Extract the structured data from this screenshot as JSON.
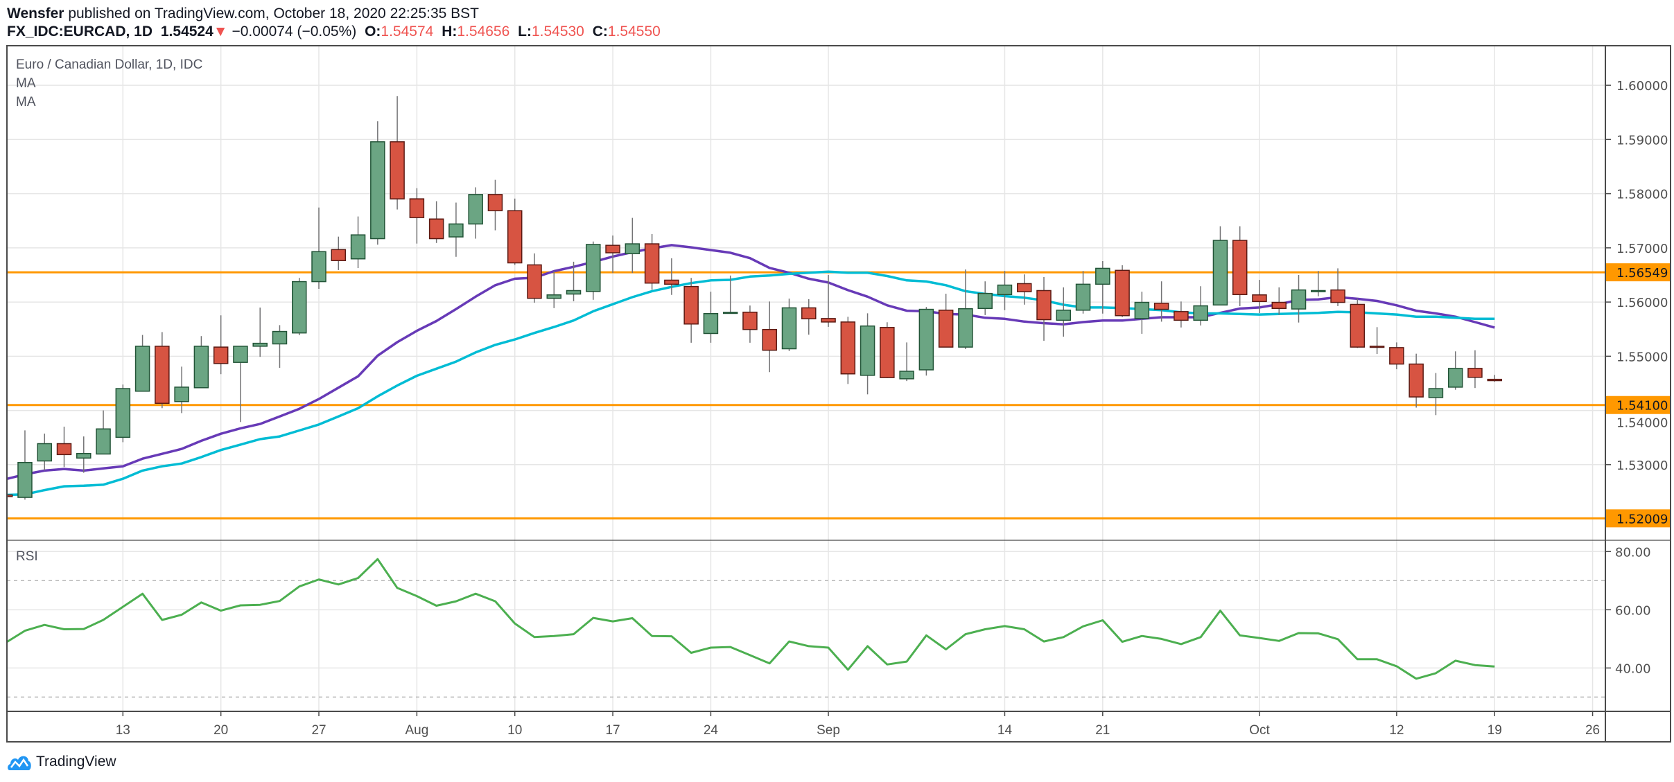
{
  "header": {
    "author": "Wensfer",
    "published": "published on TradingView.com, October 18, 2020 22:25:35 BST",
    "symbol": "FX_IDC:EURCAD, 1D",
    "last": "1.54524",
    "direction_icon": "triangle-down-icon",
    "change": "−0.00074 (−0.05%)",
    "o_label": "O:",
    "o": "1.54574",
    "h_label": "H:",
    "h": "1.54656",
    "l_label": "L:",
    "l": "1.54530",
    "c_label": "C:",
    "c": "1.54550"
  },
  "legend": {
    "title": "Euro / Canadian Dollar, 1D, IDC",
    "ma1": "MA",
    "ma2": "MA",
    "rsi": "RSI"
  },
  "branding": {
    "logo_text": "TradingView",
    "logo_icon": "tradingview-cloud-icon"
  },
  "colors": {
    "up_body": "#6ba583",
    "up_border": "#225437",
    "down_body": "#d75442",
    "down_border": "#5b1a13",
    "wick": "#737375",
    "level_line": "#ff9800",
    "ma1": "#673ab7",
    "ma2": "#00bcd4",
    "rsi": "#4caf50",
    "header_value": "#ef5350"
  },
  "chart_data": {
    "type": "candlestick",
    "title": "Euro / Canadian Dollar, 1D, IDC",
    "ylim": [
      1.5163,
      1.6073
    ],
    "grid": true,
    "price_ticks": [
      "1.60000",
      "1.59000",
      "1.58000",
      "1.57000",
      "1.56000",
      "1.55000",
      "1.54000",
      "1.53000"
    ],
    "horizontal_levels": [
      {
        "value": 1.56549,
        "label": "1.56549"
      },
      {
        "value": 1.541,
        "label": "1.54100"
      },
      {
        "value": 1.52009,
        "label": "1.52009"
      }
    ],
    "x_labels": [
      {
        "date": "2020-07-13",
        "label": "13"
      },
      {
        "date": "2020-07-20",
        "label": "20"
      },
      {
        "date": "2020-07-27",
        "label": "27"
      },
      {
        "date": "2020-08-03",
        "label": "Aug"
      },
      {
        "date": "2020-08-10",
        "label": "10"
      },
      {
        "date": "2020-08-17",
        "label": "17"
      },
      {
        "date": "2020-08-24",
        "label": "24"
      },
      {
        "date": "2020-09-01",
        "label": "Sep"
      },
      {
        "date": "2020-09-14",
        "label": "14"
      },
      {
        "date": "2020-09-21",
        "label": "21"
      },
      {
        "date": "2020-10-01",
        "label": "Oct"
      },
      {
        "date": "2020-10-12",
        "label": "12"
      },
      {
        "date": "2020-10-19",
        "label": "19"
      },
      {
        "date": "2020-10-26",
        "label": "26"
      }
    ],
    "candle_fields": [
      "date",
      "open",
      "high",
      "low",
      "close"
    ],
    "candles": [
      [
        "2020-07-03",
        1.5244,
        1.5248,
        1.5236,
        1.5241
      ],
      [
        "2020-07-06",
        1.52396,
        1.53632,
        1.52354,
        1.5304
      ],
      [
        "2020-07-07",
        1.53068,
        1.53573,
        1.52892,
        1.53387
      ],
      [
        "2020-07-08",
        1.53387,
        1.53701,
        1.52956,
        1.53185
      ],
      [
        "2020-07-09",
        1.53121,
        1.5352,
        1.5285,
        1.53206
      ],
      [
        "2020-07-10",
        1.53196,
        1.54,
        1.53196,
        1.53659
      ],
      [
        "2020-07-13",
        1.53504,
        1.54478,
        1.53414,
        1.54403
      ],
      [
        "2020-07-14",
        1.54355,
        1.55393,
        1.54355,
        1.55185
      ],
      [
        "2020-07-15",
        1.55185,
        1.55446,
        1.54042,
        1.54132
      ],
      [
        "2020-07-16",
        1.54164,
        1.54808,
        1.53951,
        1.5443
      ],
      [
        "2020-07-17",
        1.54419,
        1.55372,
        1.54419,
        1.55185
      ],
      [
        "2020-07-20",
        1.55169,
        1.55755,
        1.54669,
        1.54866
      ],
      [
        "2020-07-21",
        1.54887,
        1.55185,
        1.53786,
        1.55185
      ],
      [
        "2020-07-22",
        1.55185,
        1.55898,
        1.54989,
        1.55239
      ],
      [
        "2020-07-23",
        1.55228,
        1.55574,
        1.54786,
        1.55457
      ],
      [
        "2020-07-24",
        1.5543,
        1.56446,
        1.55388,
        1.56377
      ],
      [
        "2020-07-27",
        1.56377,
        1.57744,
        1.56244,
        1.5693
      ],
      [
        "2020-07-28",
        1.56968,
        1.57207,
        1.5659,
        1.56765
      ],
      [
        "2020-07-29",
        1.56797,
        1.57579,
        1.56627,
        1.57239
      ],
      [
        "2020-07-30",
        1.5717,
        1.59335,
        1.57058,
        1.58957
      ],
      [
        "2020-07-31",
        1.58957,
        1.59798,
        1.57707,
        1.57904
      ],
      [
        "2020-08-03",
        1.57904,
        1.58101,
        1.57079,
        1.57558
      ],
      [
        "2020-08-04",
        1.57532,
        1.57861,
        1.5709,
        1.5717
      ],
      [
        "2020-08-05",
        1.57202,
        1.57835,
        1.56835,
        1.57441
      ],
      [
        "2020-08-06",
        1.57441,
        1.58117,
        1.5717,
        1.57984
      ],
      [
        "2020-08-07",
        1.57984,
        1.58255,
        1.57324,
        1.57686
      ],
      [
        "2020-08-10",
        1.57686,
        1.57909,
        1.56686,
        1.56723
      ],
      [
        "2020-08-11",
        1.56686,
        1.56898,
        1.55989,
        1.56069
      ],
      [
        "2020-08-12",
        1.56069,
        1.56574,
        1.55888,
        1.56132
      ],
      [
        "2020-08-13",
        1.56148,
        1.56744,
        1.56015,
        1.56212
      ],
      [
        "2020-08-14",
        1.56196,
        1.57117,
        1.56042,
        1.57063
      ],
      [
        "2020-08-17",
        1.57047,
        1.57228,
        1.56537,
        1.56909
      ],
      [
        "2020-08-18",
        1.56893,
        1.57553,
        1.56537,
        1.57074
      ],
      [
        "2020-08-19",
        1.57074,
        1.57255,
        1.56228,
        1.5635
      ],
      [
        "2020-08-20",
        1.56404,
        1.56808,
        1.56132,
        1.56329
      ],
      [
        "2020-08-21",
        1.56287,
        1.56446,
        1.55249,
        1.55595
      ],
      [
        "2020-08-24",
        1.5542,
        1.56191,
        1.55249,
        1.55787
      ],
      [
        "2020-08-25",
        1.55805,
        1.56489,
        1.558,
        1.5581
      ],
      [
        "2020-08-26",
        1.55813,
        1.55936,
        1.55249,
        1.55494
      ],
      [
        "2020-08-27",
        1.55494,
        1.5601,
        1.54707,
        1.55111
      ],
      [
        "2020-08-28",
        1.55138,
        1.56063,
        1.55095,
        1.55893
      ],
      [
        "2020-08-31",
        1.55893,
        1.56053,
        1.55398,
        1.55691
      ],
      [
        "2020-09-01",
        1.55696,
        1.56499,
        1.55542,
        1.55632
      ],
      [
        "2020-09-02",
        1.55632,
        1.55728,
        1.54488,
        1.54675
      ],
      [
        "2020-09-03",
        1.54648,
        1.55792,
        1.54297,
        1.55558
      ],
      [
        "2020-09-04",
        1.55531,
        1.55627,
        1.54595,
        1.54606
      ],
      [
        "2020-09-07",
        1.54584,
        1.55255,
        1.54542,
        1.54723
      ],
      [
        "2020-09-08",
        1.54749,
        1.55909,
        1.54643,
        1.55866
      ],
      [
        "2020-09-09",
        1.5585,
        1.56154,
        1.55169,
        1.55169
      ],
      [
        "2020-09-10",
        1.55169,
        1.56601,
        1.55132,
        1.55877
      ],
      [
        "2020-09-11",
        1.55882,
        1.56382,
        1.5576,
        1.56159
      ],
      [
        "2020-09-14",
        1.56138,
        1.56574,
        1.5585,
        1.56313
      ],
      [
        "2020-09-15",
        1.5634,
        1.5651,
        1.55952,
        1.56191
      ],
      [
        "2020-09-16",
        1.56212,
        1.56462,
        1.55286,
        1.55675
      ],
      [
        "2020-09-17",
        1.55664,
        1.56271,
        1.55361,
        1.5585
      ],
      [
        "2020-09-18",
        1.5585,
        1.56574,
        1.55787,
        1.56329
      ],
      [
        "2020-09-21",
        1.56329,
        1.56755,
        1.55787,
        1.56622
      ],
      [
        "2020-09-22",
        1.56585,
        1.5668,
        1.55723,
        1.55749
      ],
      [
        "2020-09-23",
        1.55696,
        1.56191,
        1.55414,
        1.55994
      ],
      [
        "2020-09-24",
        1.55978,
        1.56382,
        1.55638,
        1.55866
      ],
      [
        "2020-09-25",
        1.55824,
        1.5601,
        1.55531,
        1.55664
      ],
      [
        "2020-09-28",
        1.55664,
        1.56292,
        1.55568,
        1.5593
      ],
      [
        "2020-09-29",
        1.55946,
        1.57399,
        1.55946,
        1.57138
      ],
      [
        "2020-09-30",
        1.57138,
        1.57399,
        1.55925,
        1.56138
      ],
      [
        "2020-10-01",
        1.56132,
        1.56409,
        1.55797,
        1.5601
      ],
      [
        "2020-10-02",
        1.55994,
        1.56271,
        1.55765,
        1.55882
      ],
      [
        "2020-10-05",
        1.55872,
        1.56499,
        1.55622,
        1.56223
      ],
      [
        "2020-10-06",
        1.56191,
        1.56574,
        1.56106,
        1.56212
      ],
      [
        "2020-10-07",
        1.56223,
        1.56622,
        1.55925,
        1.55994
      ],
      [
        "2020-10-08",
        1.55957,
        1.56063,
        1.55153,
        1.55169
      ],
      [
        "2020-10-09",
        1.55185,
        1.55537,
        1.55042,
        1.55164
      ],
      [
        "2020-10-12",
        1.55159,
        1.55255,
        1.5476,
        1.54856
      ],
      [
        "2020-10-13",
        1.54856,
        1.55047,
        1.54052,
        1.54249
      ],
      [
        "2020-10-14",
        1.54238,
        1.54691,
        1.53914,
        1.54403
      ],
      [
        "2020-10-15",
        1.5443,
        1.5509,
        1.54382,
        1.54776
      ],
      [
        "2020-10-16",
        1.54776,
        1.55111,
        1.54414,
        1.54611
      ],
      [
        "2020-10-19",
        1.54574,
        1.54656,
        1.5453,
        1.5455
      ]
    ],
    "moving_averages": [
      {
        "name": "MA",
        "color": "#673ab7",
        "values": [
          1.5273,
          1.5282,
          1.5289,
          1.5292,
          1.5289,
          1.5293,
          1.5297,
          1.5311,
          1.532,
          1.5329,
          1.5344,
          1.5357,
          1.5367,
          1.5375,
          1.5389,
          1.5403,
          1.5421,
          1.5442,
          1.5463,
          1.5501,
          1.5526,
          1.5547,
          1.5565,
          1.5587,
          1.561,
          1.5631,
          1.5643,
          1.5645,
          1.5657,
          1.5665,
          1.5674,
          1.5684,
          1.5692,
          1.5699,
          1.5705,
          1.5701,
          1.5696,
          1.5691,
          1.5681,
          1.5663,
          1.5654,
          1.5643,
          1.5636,
          1.5622,
          1.561,
          1.5594,
          1.5584,
          1.5583,
          1.5578,
          1.5577,
          1.5571,
          1.5569,
          1.5564,
          1.5561,
          1.5559,
          1.5563,
          1.5566,
          1.5566,
          1.5569,
          1.5572,
          1.5572,
          1.5572,
          1.558,
          1.5588,
          1.559,
          1.5596,
          1.5604,
          1.5605,
          1.5609,
          1.5606,
          1.5602,
          1.5594,
          1.5584,
          1.5579,
          1.5573,
          1.5563,
          1.5553
        ]
      },
      {
        "name": "MA",
        "color": "#00bcd4",
        "values": [
          1.5244,
          1.5245,
          1.5253,
          1.526,
          1.5261,
          1.5263,
          1.5274,
          1.5289,
          1.5297,
          1.5302,
          1.5314,
          1.5327,
          1.5337,
          1.5347,
          1.5352,
          1.5363,
          1.5374,
          1.5389,
          1.5404,
          1.5426,
          1.5446,
          1.5464,
          1.5477,
          1.549,
          1.5507,
          1.5521,
          1.5531,
          1.5543,
          1.5554,
          1.5566,
          1.5583,
          1.5596,
          1.5609,
          1.562,
          1.5628,
          1.5635,
          1.564,
          1.5641,
          1.5647,
          1.5649,
          1.5652,
          1.5654,
          1.5656,
          1.5654,
          1.5654,
          1.5648,
          1.564,
          1.5638,
          1.5631,
          1.562,
          1.5615,
          1.5611,
          1.5608,
          1.5603,
          1.5595,
          1.559,
          1.559,
          1.5589,
          1.5587,
          1.5585,
          1.5581,
          1.5579,
          1.5579,
          1.5578,
          1.5577,
          1.5578,
          1.5579,
          1.558,
          1.5582,
          1.5581,
          1.5579,
          1.5577,
          1.5573,
          1.5573,
          1.5571,
          1.5569,
          1.5569
        ]
      }
    ],
    "rsi": {
      "name": "RSI",
      "ylim": [
        25.1,
        83.4
      ],
      "ticks": [
        "80.00",
        "60.00",
        "40.00"
      ],
      "levels": [
        70,
        30
      ],
      "values": [
        48.6,
        52.8,
        54.8,
        53.3,
        53.4,
        56.5,
        61.0,
        65.5,
        56.5,
        58.3,
        62.5,
        59.7,
        61.5,
        61.7,
        63.0,
        68.0,
        70.4,
        68.7,
        70.9,
        77.4,
        67.5,
        64.7,
        61.4,
        62.9,
        65.5,
        62.9,
        55.3,
        50.6,
        51.0,
        51.6,
        57.2,
        56.0,
        57.1,
        51.0,
        50.9,
        45.2,
        47.0,
        47.2,
        44.4,
        41.6,
        49.1,
        47.5,
        47.0,
        39.4,
        47.5,
        41.2,
        42.2,
        51.2,
        46.4,
        51.6,
        53.3,
        54.4,
        53.3,
        49.1,
        50.6,
        54.3,
        56.4,
        49.0,
        51.0,
        50.0,
        48.2,
        50.6,
        59.7,
        51.2,
        50.3,
        49.3,
        52.0,
        51.9,
        49.9,
        43.0,
        43.0,
        40.6,
        36.3,
        38.2,
        42.5,
        41.0,
        40.5
      ]
    }
  }
}
